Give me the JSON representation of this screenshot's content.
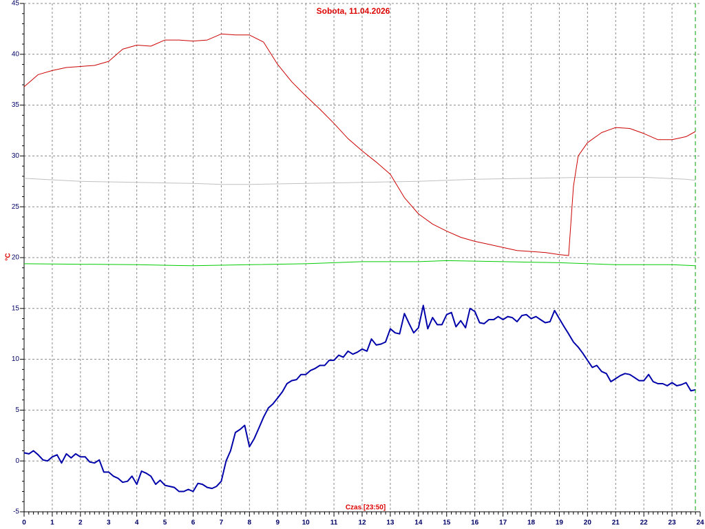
{
  "chart_data": {
    "type": "line",
    "title": "Sobota, 11.04.2026",
    "x_label": "Czas [23:50]",
    "y_label": "°C",
    "xlim": [
      0,
      24
    ],
    "xticks": [
      0,
      1,
      2,
      3,
      4,
      5,
      6,
      7,
      8,
      9,
      10,
      11,
      12,
      13,
      14,
      15,
      16,
      17,
      18,
      19,
      20,
      21,
      22,
      23,
      24
    ],
    "ylim": [
      -5,
      45
    ],
    "yticks": [
      -5,
      0,
      5,
      10,
      15,
      20,
      25,
      30,
      35,
      40,
      45
    ],
    "x_minor_per_tick": 6,
    "y_minor_per_tick": 5,
    "grid": true,
    "now_marker": {
      "x": 23.83,
      "color": "#00a000"
    },
    "series": [
      {
        "color": "#c0c0c0",
        "width": 1,
        "x": [
          0,
          2,
          4,
          6,
          7,
          8,
          10,
          12,
          14,
          16,
          18,
          20,
          22,
          23.5,
          23.83
        ],
        "values": [
          27.8,
          27.5,
          27.4,
          27.3,
          27.2,
          27.2,
          27.3,
          27.4,
          27.5,
          27.7,
          27.8,
          27.9,
          27.9,
          27.7,
          27.6
        ]
      },
      {
        "color": "#00cc00",
        "width": 1,
        "x": [
          0,
          4,
          6,
          8,
          10,
          12,
          14,
          15,
          17,
          19,
          21,
          23,
          23.83
        ],
        "values": [
          19.4,
          19.3,
          19.2,
          19.3,
          19.4,
          19.6,
          19.6,
          19.7,
          19.6,
          19.5,
          19.3,
          19.3,
          19.2
        ]
      },
      {
        "color": "#cc0000",
        "width": 1,
        "x": [
          0,
          0.5,
          1,
          1.5,
          2,
          2.5,
          3,
          3.5,
          4,
          4.5,
          5,
          5.5,
          6,
          6.5,
          7,
          7.5,
          8,
          8.5,
          9,
          9.5,
          10,
          10.5,
          11,
          11.5,
          12,
          12.5,
          13,
          13.5,
          14,
          14.5,
          15,
          15.5,
          16,
          16.5,
          17,
          17.5,
          18,
          18.5,
          19,
          19.33,
          19.5,
          19.67,
          20,
          20.5,
          21,
          21.5,
          22,
          22.5,
          23,
          23.5,
          23.83
        ],
        "values": [
          36.8,
          38.0,
          38.4,
          38.7,
          38.8,
          38.9,
          39.3,
          40.5,
          40.9,
          40.8,
          41.4,
          41.4,
          41.3,
          41.4,
          42.0,
          41.9,
          41.9,
          41.2,
          39.0,
          37.3,
          35.9,
          34.6,
          33.2,
          31.7,
          30.5,
          29.4,
          28.2,
          25.9,
          24.3,
          23.3,
          22.6,
          22.0,
          21.6,
          21.3,
          21.0,
          20.7,
          20.6,
          20.5,
          20.3,
          20.2,
          27.0,
          30.0,
          31.3,
          32.3,
          32.8,
          32.7,
          32.2,
          31.6,
          31.6,
          31.9,
          32.4
        ]
      },
      {
        "color": "#0000aa",
        "width": 2,
        "x": [
          0,
          0.17,
          0.33,
          0.5,
          0.67,
          0.83,
          1,
          1.17,
          1.33,
          1.5,
          1.67,
          1.83,
          2,
          2.17,
          2.33,
          2.5,
          2.67,
          2.83,
          3,
          3.17,
          3.33,
          3.5,
          3.67,
          3.83,
          4,
          4.17,
          4.33,
          4.5,
          4.67,
          4.83,
          5,
          5.17,
          5.33,
          5.5,
          5.67,
          5.83,
          6,
          6.17,
          6.33,
          6.5,
          6.67,
          6.83,
          7,
          7.17,
          7.33,
          7.5,
          7.67,
          7.83,
          8,
          8.17,
          8.33,
          8.5,
          8.67,
          8.83,
          9,
          9.17,
          9.33,
          9.5,
          9.67,
          9.83,
          10,
          10.17,
          10.33,
          10.5,
          10.67,
          10.83,
          11,
          11.17,
          11.33,
          11.5,
          11.67,
          11.83,
          12,
          12.17,
          12.33,
          12.5,
          12.67,
          12.83,
          13,
          13.17,
          13.33,
          13.5,
          13.67,
          13.83,
          14,
          14.17,
          14.33,
          14.5,
          14.67,
          14.83,
          15,
          15.17,
          15.33,
          15.5,
          15.67,
          15.83,
          16,
          16.17,
          16.33,
          16.5,
          16.67,
          16.83,
          17,
          17.17,
          17.33,
          17.5,
          17.67,
          17.83,
          18,
          18.17,
          18.33,
          18.5,
          18.67,
          18.83,
          19,
          19.17,
          19.33,
          19.5,
          19.67,
          19.83,
          20,
          20.17,
          20.33,
          20.5,
          20.67,
          20.83,
          21,
          21.17,
          21.33,
          21.5,
          21.67,
          21.83,
          22,
          22.17,
          22.33,
          22.5,
          22.67,
          22.83,
          23,
          23.17,
          23.33,
          23.5,
          23.67,
          23.83
        ],
        "values": [
          0.8,
          0.7,
          1.0,
          0.6,
          0.1,
          0.0,
          0.4,
          0.6,
          -0.2,
          0.7,
          0.3,
          0.7,
          0.4,
          0.4,
          -0.1,
          -0.2,
          0.1,
          -1.1,
          -1.1,
          -1.5,
          -1.7,
          -2.1,
          -2.0,
          -1.5,
          -2.3,
          -1.0,
          -1.2,
          -1.5,
          -2.3,
          -1.9,
          -2.4,
          -2.5,
          -2.6,
          -3.0,
          -3.0,
          -2.8,
          -3.0,
          -2.2,
          -2.3,
          -2.6,
          -2.7,
          -2.5,
          -2.0,
          0.0,
          1.0,
          2.8,
          3.1,
          3.5,
          1.4,
          2.2,
          3.2,
          4.3,
          5.2,
          5.6,
          6.2,
          6.8,
          7.6,
          7.9,
          8.0,
          8.5,
          8.5,
          8.9,
          9.1,
          9.4,
          9.4,
          9.9,
          9.9,
          10.4,
          10.2,
          10.8,
          10.5,
          10.7,
          11.0,
          10.8,
          12.0,
          11.4,
          11.5,
          11.7,
          13.0,
          12.6,
          12.5,
          14.5,
          13.5,
          12.6,
          13.1,
          15.3,
          13.0,
          14.1,
          13.4,
          13.4,
          14.4,
          14.6,
          13.2,
          13.8,
          13.1,
          15.0,
          14.7,
          13.6,
          13.5,
          13.9,
          13.9,
          14.2,
          13.9,
          14.2,
          14.1,
          13.7,
          14.3,
          14.4,
          14.0,
          14.2,
          13.9,
          13.6,
          13.7,
          14.8,
          14.0,
          13.2,
          12.5,
          11.7,
          11.2,
          10.6,
          9.9,
          9.2,
          9.4,
          8.8,
          8.6,
          7.8,
          8.1,
          8.4,
          8.6,
          8.5,
          8.2,
          7.9,
          7.9,
          8.5,
          7.8,
          7.6,
          7.6,
          7.4,
          7.7,
          7.4,
          7.5,
          7.7,
          6.9,
          7.0
        ]
      }
    ]
  }
}
